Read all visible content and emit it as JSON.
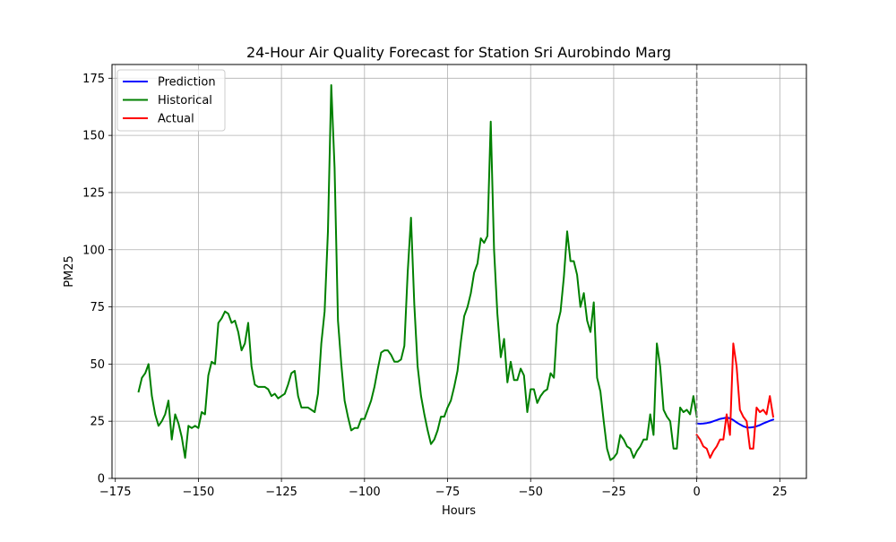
{
  "chart_data": {
    "type": "line",
    "title": "24-Hour Air Quality Forecast for Station Sri Aurobindo Marg",
    "xlabel": "Hours",
    "ylabel": "PM25",
    "xlim": [
      -176,
      33
    ],
    "ylim": [
      0,
      181
    ],
    "xticks": [
      -175,
      -150,
      -125,
      -100,
      -75,
      -50,
      -25,
      0,
      25
    ],
    "yticks": [
      0,
      25,
      50,
      75,
      100,
      125,
      150,
      175
    ],
    "grid": true,
    "legend_position": "top-left",
    "vline": {
      "x": 0,
      "color": "#808080",
      "style": "dashed"
    },
    "series": [
      {
        "name": "Prediction",
        "color": "#0000ff",
        "x": [
          0,
          1,
          2,
          3,
          4,
          5,
          6,
          7,
          8,
          9,
          10,
          11,
          12,
          13,
          14,
          15,
          16,
          17,
          18,
          19,
          20,
          21,
          22,
          23
        ],
        "values": [
          24,
          23.9,
          24,
          24.2,
          24.5,
          25,
          25.5,
          26,
          26.3,
          26.6,
          26.3,
          25.5,
          24.5,
          23.6,
          22.8,
          22.3,
          22.2,
          22.4,
          22.8,
          23.3,
          24,
          24.6,
          25.2,
          25.7
        ]
      },
      {
        "name": "Historical",
        "color": "#008000",
        "x": [
          -168,
          -167,
          -166,
          -165,
          -164,
          -163,
          -162,
          -161,
          -160,
          -159,
          -158,
          -157,
          -156,
          -155,
          -154,
          -153,
          -152,
          -151,
          -150,
          -149,
          -148,
          -147,
          -146,
          -145,
          -144,
          -143,
          -142,
          -141,
          -140,
          -139,
          -138,
          -137,
          -136,
          -135,
          -134,
          -133,
          -132,
          -131,
          -130,
          -129,
          -128,
          -127,
          -126,
          -125,
          -124,
          -123,
          -122,
          -121,
          -120,
          -119,
          -118,
          -117,
          -116,
          -115,
          -114,
          -113,
          -112,
          -111,
          -110,
          -109,
          -108,
          -107,
          -106,
          -105,
          -104,
          -103,
          -102,
          -101,
          -100,
          -99,
          -98,
          -97,
          -96,
          -95,
          -94,
          -93,
          -92,
          -91,
          -90,
          -89,
          -88,
          -87,
          -86,
          -85,
          -84,
          -83,
          -82,
          -81,
          -80,
          -79,
          -78,
          -77,
          -76,
          -75,
          -74,
          -73,
          -72,
          -71,
          -70,
          -69,
          -68,
          -67,
          -66,
          -65,
          -64,
          -63,
          -62,
          -61,
          -60,
          -59,
          -58,
          -57,
          -56,
          -55,
          -54,
          -53,
          -52,
          -51,
          -50,
          -49,
          -48,
          -47,
          -46,
          -45,
          -44,
          -43,
          -42,
          -41,
          -40,
          -39,
          -38,
          -37,
          -36,
          -35,
          -34,
          -33,
          -32,
          -31,
          -30,
          -29,
          -28,
          -27,
          -26,
          -25,
          -24,
          -23,
          -22,
          -21,
          -20,
          -19,
          -18,
          -17,
          -16,
          -15,
          -14,
          -13,
          -12,
          -11,
          -10,
          -9,
          -8,
          -7,
          -6,
          -5,
          -4,
          -3,
          -2,
          -1,
          0
        ],
        "values": [
          38,
          44,
          46,
          50,
          36,
          28,
          23,
          25,
          28,
          34,
          17,
          28,
          24,
          18,
          9,
          23,
          22,
          23,
          22,
          29,
          28,
          45,
          51,
          50,
          68,
          70,
          73,
          72,
          68,
          69,
          64,
          56,
          59,
          68,
          49,
          41,
          40,
          40,
          40,
          39,
          36,
          37,
          35,
          36,
          37,
          41,
          46,
          47,
          36,
          31,
          31,
          31,
          30,
          29,
          37,
          59,
          73,
          108,
          172,
          136,
          69,
          50,
          34,
          27,
          21,
          22,
          22,
          26,
          26,
          30,
          34,
          40,
          48,
          55,
          56,
          56,
          54,
          51,
          51,
          52,
          58,
          90,
          114,
          76,
          49,
          36,
          28,
          21,
          15,
          17,
          21,
          27,
          27,
          31,
          34,
          40,
          47,
          60,
          71,
          75,
          81,
          90,
          94,
          105,
          103,
          106,
          156,
          100,
          72,
          53,
          61,
          42,
          51,
          43,
          43,
          48,
          45,
          29,
          39,
          39,
          33,
          36,
          38,
          39,
          46,
          44,
          67,
          73,
          88,
          108,
          95,
          95,
          89,
          75,
          81,
          69,
          64,
          77,
          44,
          38,
          25,
          13,
          8,
          9,
          11,
          19,
          17,
          14,
          13,
          9,
          12,
          14,
          17,
          17,
          28,
          19,
          59,
          49,
          30,
          27,
          25,
          13,
          13,
          31,
          29,
          30,
          28,
          36,
          27
        ]
      },
      {
        "name": "Actual",
        "color": "#ff0000",
        "x": [
          0,
          1,
          2,
          3,
          4,
          5,
          6,
          7,
          8,
          9,
          10,
          11,
          12,
          13,
          14,
          15,
          16,
          17,
          18,
          19,
          20,
          21,
          22,
          23
        ],
        "values": [
          19,
          17,
          14,
          13,
          9,
          12,
          14,
          17,
          17,
          28,
          19,
          59,
          49,
          30,
          27,
          25,
          13,
          13,
          31,
          29,
          30,
          28,
          36,
          27
        ]
      }
    ]
  }
}
